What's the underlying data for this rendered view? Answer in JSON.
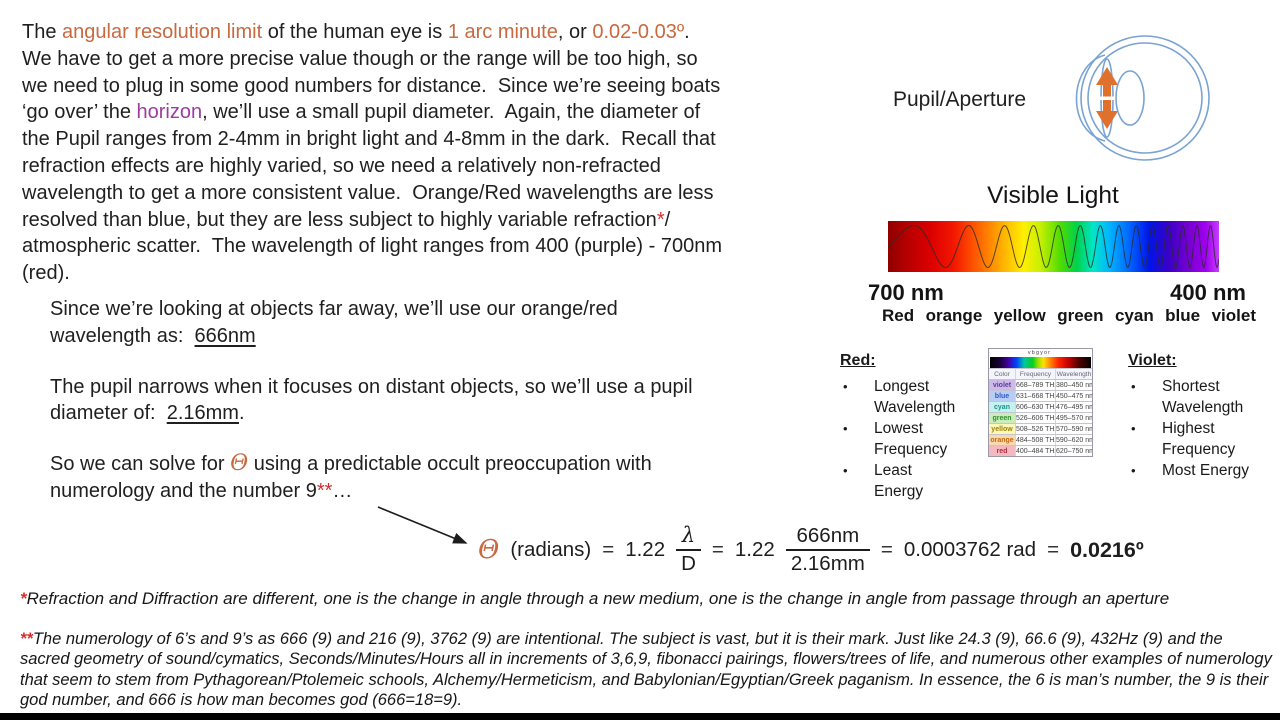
{
  "palette": {
    "highlight_orange": "#c8693f",
    "highlight_purple": "#9c3d9e",
    "asterisk_red": "#d92b2b",
    "eye_outline_blue": "#7aa3d4",
    "pupil_arrow_orange": "#e0712d"
  },
  "main": {
    "p1": {
      "l1a": "The ",
      "l1b": "angular resolution limit",
      "l1c": " of the human eye is ",
      "l1d": "1 arc minute",
      "l1e": ", or ",
      "l1f": "0.02-0.03º",
      "l1g": ".",
      "l2": "We have to get a more precise value though or the range will be too high, so",
      "l3": "we need to plug in some good numbers for distance.  Since we’re seeing boats",
      "l4a": "‘go over’ the ",
      "l4b": "horizon",
      "l4c": ", we’ll use a small pupil diameter.  Again, the diameter of",
      "l5": "the Pupil ranges from 2-4mm in bright light and 4-8mm in the dark.  Recall that",
      "l6": "refraction effects are highly varied, so we need a relatively non-refracted",
      "l7": "wavelength to get a more consistent value.  Orange/Red wavelengths are less",
      "l8a": "resolved than blue, but they are less subject to highly variable refraction",
      "l8b": "*",
      "l8c": "/",
      "l9": "atmospheric scatter.  The wavelength of light ranges from 400 (purple) - 700nm",
      "l10": "(red)."
    },
    "p2": {
      "l1": "Since we’re looking at objects far away, we’ll use our orange/red",
      "l2a": "wavelength as:  ",
      "l2b": "666nm"
    },
    "p3": {
      "l1": "The pupil narrows when it focuses on distant objects, so we’ll use a pupil",
      "l2a": "diameter of:  ",
      "l2b": "2.16mm",
      "l2c": "."
    },
    "p4": {
      "l1a": "So we can solve for ",
      "l1b": "Θ",
      "l1c": " using a predictable occult preoccupation with",
      "l2a": "numerology and the number 9",
      "l2b": "**",
      "l2c": "…"
    }
  },
  "formula": {
    "theta": "Θ",
    "radians": "(radians)",
    "eq": "=",
    "coef1": "1.22",
    "lambda": "λ",
    "d": "D",
    "coef2": "1.22",
    "num2": "666nm",
    "den2": "2.16mm",
    "result_rad": "0.0003762 rad",
    "result_deg": "0.0216º"
  },
  "footnotes": {
    "f1_mark": "*",
    "f1": "Refraction and Diffraction are different, one is the change in angle through a new medium, one is the change in angle from passage through an aperture",
    "f2_mark": "**",
    "f2": "The numerology of 6’s and 9’s as 666 (9) and 216 (9), 3762 (9) are intentional.  The subject is vast, but it is their mark.  Just like 24.3 (9), 66.6 (9), 432Hz (9) and the sacred geometry of sound/cymatics, Seconds/Minutes/Hours all in increments of 3,6,9, fibonacci pairings, flowers/trees of life, and numerous other examples of numerology that seem to stem from Pythagorean/Ptolemeic schools, Alchemy/Hermeticism, and Babylonian/Egyptian/Greek paganism.  In essence, the 6 is man’s number, the 9 is their god number, and 666 is how man becomes god (666=18=9)."
  },
  "eye": {
    "label": "Pupil/Aperture"
  },
  "visible_light": {
    "title": "Visible Light",
    "left_wavelength": "700 nm",
    "right_wavelength": "400 nm",
    "color_labels": [
      "Red",
      "orange",
      "yellow",
      "green",
      "cyan",
      "blue",
      "violet"
    ]
  },
  "red_list": {
    "title": "Red:",
    "items": [
      "Longest Wavelength",
      "Lowest Frequency",
      "Least Energy"
    ]
  },
  "violet_list": {
    "title": "Violet:",
    "items": [
      "Shortest Wavelength",
      "Highest Frequency",
      "Most Energy"
    ]
  },
  "spectrum_table": {
    "strip_labels": "v   b   g  y o   r",
    "headers": [
      "Color",
      "Frequency",
      "Wavelength"
    ],
    "rows": [
      {
        "color": "violet",
        "frequency": "668–789 THz",
        "wavelength": "380–450 nm"
      },
      {
        "color": "blue",
        "frequency": "631–668 THz",
        "wavelength": "450–475 nm"
      },
      {
        "color": "cyan",
        "frequency": "606–630 THz",
        "wavelength": "476–495 nm"
      },
      {
        "color": "green",
        "frequency": "526–606 THz",
        "wavelength": "495–570 nm"
      },
      {
        "color": "yellow",
        "frequency": "508–526 THz",
        "wavelength": "570–590 nm"
      },
      {
        "color": "orange",
        "frequency": "484–508 THz",
        "wavelength": "590–620 nm"
      },
      {
        "color": "red",
        "frequency": "400–484 THz",
        "wavelength": "620–750 nm"
      }
    ]
  }
}
